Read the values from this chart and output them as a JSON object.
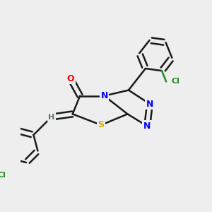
{
  "background_color": "#eeeeee",
  "bond_color": "#1a1a1a",
  "atom_colors": {
    "N": "#0000ff",
    "O": "#ff0000",
    "S": "#ccaa00",
    "Cl": "#228b22",
    "H": "#607070",
    "C": "#1a1a1a"
  },
  "line_width": 1.8,
  "dbo": 0.013,
  "figsize": [
    3.0,
    3.0
  ],
  "dpi": 100
}
